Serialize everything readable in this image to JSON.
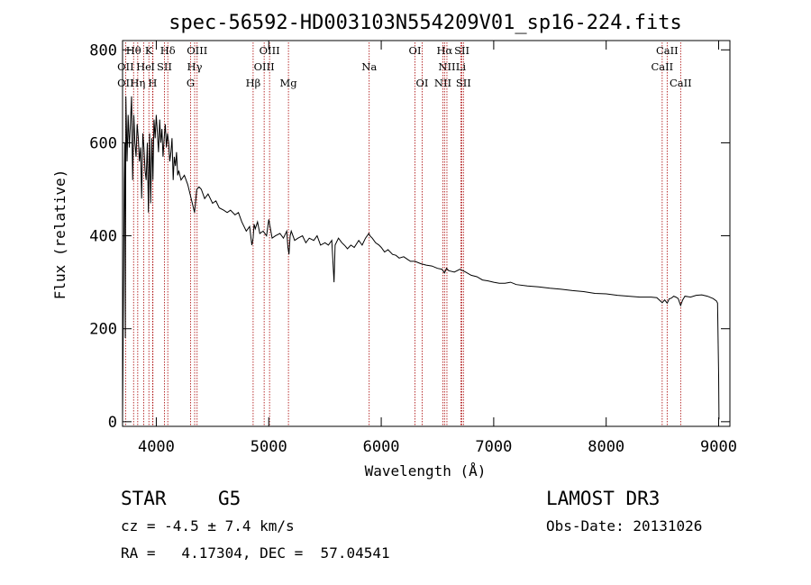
{
  "chart_data": {
    "type": "line",
    "title": "spec-56592-HD003103N554209V01_sp16-224.fits",
    "xlabel": "Wavelength (Å)",
    "ylabel": "Flux (relative)",
    "xlim": [
      3700,
      9100
    ],
    "ylim": [
      -10,
      820
    ],
    "xticks": [
      4000,
      5000,
      6000,
      7000,
      8000,
      9000
    ],
    "yticks": [
      0,
      200,
      400,
      600,
      800
    ],
    "series": [
      {
        "name": "flux",
        "x": [
          3700,
          3710,
          3715,
          3720,
          3725,
          3730,
          3740,
          3750,
          3760,
          3770,
          3780,
          3790,
          3800,
          3810,
          3820,
          3830,
          3840,
          3850,
          3860,
          3870,
          3880,
          3890,
          3900,
          3910,
          3920,
          3930,
          3940,
          3950,
          3960,
          3970,
          3980,
          3990,
          4000,
          4010,
          4020,
          4030,
          4040,
          4050,
          4060,
          4070,
          4080,
          4090,
          4100,
          4110,
          4120,
          4130,
          4140,
          4150,
          4160,
          4170,
          4180,
          4190,
          4200,
          4220,
          4250,
          4280,
          4300,
          4320,
          4340,
          4360,
          4380,
          4400,
          4430,
          4460,
          4500,
          4530,
          4560,
          4600,
          4630,
          4660,
          4700,
          4730,
          4760,
          4800,
          4830,
          4850,
          4861,
          4870,
          4880,
          4900,
          4920,
          4950,
          4980,
          5000,
          5030,
          5060,
          5100,
          5130,
          5160,
          5170,
          5180,
          5190,
          5200,
          5230,
          5260,
          5300,
          5330,
          5360,
          5400,
          5430,
          5460,
          5500,
          5530,
          5560,
          5580,
          5590,
          5620,
          5650,
          5680,
          5700,
          5730,
          5760,
          5800,
          5830,
          5860,
          5890,
          5900,
          5920,
          5950,
          5980,
          6000,
          6030,
          6060,
          6100,
          6130,
          6160,
          6200,
          6230,
          6260,
          6300,
          6350,
          6400,
          6450,
          6500,
          6540,
          6563,
          6580,
          6600,
          6650,
          6700,
          6750,
          6800,
          6850,
          6900,
          6950,
          7000,
          7050,
          7100,
          7150,
          7200,
          7300,
          7400,
          7500,
          7600,
          7700,
          7800,
          7900,
          8000,
          8100,
          8200,
          8300,
          8400,
          8450,
          8498,
          8520,
          8542,
          8560,
          8580,
          8600,
          8620,
          8640,
          8662,
          8680,
          8700,
          8750,
          8800,
          8850,
          8900,
          8950,
          8980,
          8990,
          9000,
          9003
        ],
        "y": [
          5,
          330,
          520,
          600,
          180,
          700,
          560,
          660,
          590,
          640,
          700,
          520,
          660,
          600,
          570,
          640,
          610,
          560,
          590,
          480,
          620,
          590,
          540,
          520,
          600,
          450,
          620,
          470,
          610,
          520,
          650,
          610,
          660,
          620,
          580,
          650,
          600,
          630,
          570,
          610,
          640,
          590,
          620,
          600,
          560,
          580,
          610,
          520,
          570,
          550,
          580,
          530,
          540,
          520,
          530,
          510,
          490,
          470,
          450,
          500,
          505,
          500,
          480,
          490,
          470,
          475,
          460,
          455,
          450,
          455,
          445,
          450,
          430,
          410,
          420,
          380,
          395,
          425,
          415,
          430,
          405,
          410,
          400,
          435,
          395,
          400,
          405,
          395,
          410,
          375,
          360,
          400,
          410,
          390,
          395,
          400,
          385,
          395,
          390,
          400,
          380,
          385,
          380,
          390,
          300,
          380,
          395,
          385,
          378,
          372,
          380,
          375,
          390,
          380,
          395,
          405,
          400,
          395,
          385,
          380,
          375,
          365,
          370,
          360,
          358,
          352,
          355,
          350,
          345,
          345,
          340,
          337,
          335,
          330,
          328,
          320,
          330,
          325,
          322,
          328,
          322,
          315,
          312,
          305,
          303,
          300,
          298,
          298,
          300,
          295,
          292,
          290,
          287,
          285,
          282,
          280,
          276,
          275,
          272,
          270,
          268,
          268,
          267,
          256,
          262,
          255,
          264,
          266,
          270,
          268,
          265,
          250,
          262,
          270,
          268,
          272,
          273,
          270,
          265,
          260,
          255,
          100,
          5
        ]
      }
    ],
    "spectral_lines": [
      {
        "label": "Hθ",
        "wl": 3798,
        "row": 0
      },
      {
        "label": "K",
        "wl": 3934,
        "row": 0
      },
      {
        "label": "Hδ",
        "wl": 4102,
        "row": 0
      },
      {
        "label": "OIII",
        "wl": 4363,
        "row": 0
      },
      {
        "label": "OIII",
        "wl": 5007,
        "row": 0
      },
      {
        "label": "OI",
        "wl": 6300,
        "row": 0
      },
      {
        "label": "Hα",
        "wl": 6563,
        "row": 0
      },
      {
        "label": "SII",
        "wl": 6717,
        "row": 0
      },
      {
        "label": "CaII",
        "wl": 8542,
        "row": 0
      },
      {
        "label": "OII",
        "wl": 3727,
        "row": 1
      },
      {
        "label": "He",
        "wl": 3889,
        "row": 1
      },
      {
        "label": "I",
        "wl": 3970,
        "row": 1
      },
      {
        "label": "SII",
        "wl": 4072,
        "row": 1
      },
      {
        "label": "Hγ",
        "wl": 4341,
        "row": 1
      },
      {
        "label": "OIII",
        "wl": 4959,
        "row": 1
      },
      {
        "label": "Na",
        "wl": 5893,
        "row": 1
      },
      {
        "label": "NII",
        "wl": 6584,
        "row": 1
      },
      {
        "label": "Li",
        "wl": 6708,
        "row": 1
      },
      {
        "label": "CaII",
        "wl": 8498,
        "row": 1
      },
      {
        "label": "OII",
        "wl": 3727,
        "row": 2
      },
      {
        "label": "Hη",
        "wl": 3835,
        "row": 2
      },
      {
        "label": "H",
        "wl": 3968,
        "row": 2
      },
      {
        "label": "G",
        "wl": 4305,
        "row": 2
      },
      {
        "label": "Hβ",
        "wl": 4861,
        "row": 2
      },
      {
        "label": "Mg",
        "wl": 5175,
        "row": 2
      },
      {
        "label": "OI",
        "wl": 6364,
        "row": 2
      },
      {
        "label": "NII",
        "wl": 6548,
        "row": 2
      },
      {
        "label": "SII",
        "wl": 6731,
        "row": 2
      },
      {
        "label": "CaII",
        "wl": 8662,
        "row": 2
      }
    ]
  },
  "info": {
    "object_type": "STAR",
    "subclass": "G5",
    "survey": "LAMOST DR3",
    "cz": "cz = -4.5 ± 7.4 km/s",
    "obs_date": "Obs-Date: 20131026",
    "coords": "RA =   4.17304, DEC =  57.04541"
  }
}
